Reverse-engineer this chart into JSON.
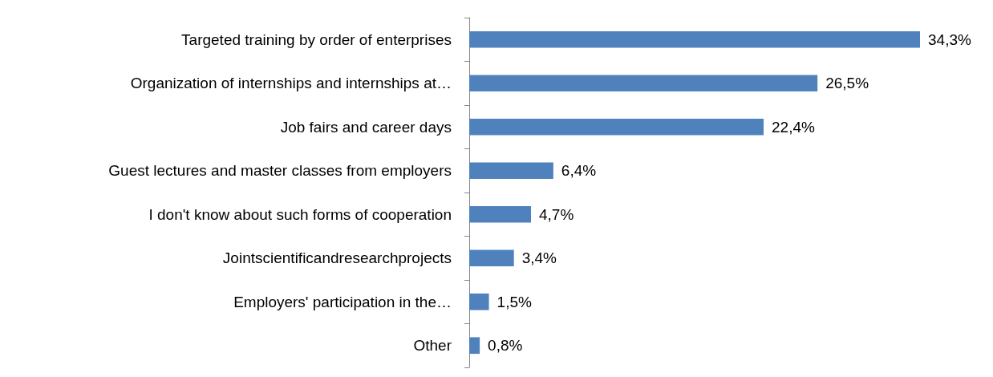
{
  "chart_data": {
    "type": "bar",
    "orientation": "horizontal",
    "categories": [
      "Targeted training by order of enterprises",
      "Organization of internships and internships at…",
      "Job fairs and career days",
      "Guest lectures and master classes from employers",
      "I don't know about such forms of cooperation",
      "Jointscientificandresearchprojects",
      "Employers' participation in the…",
      "Other"
    ],
    "values": [
      34.3,
      26.5,
      22.4,
      6.4,
      4.7,
      3.4,
      1.5,
      0.8
    ],
    "value_labels": [
      "34,3%",
      "26,5%",
      "22,4%",
      "6,4%",
      "4,7%",
      "3,4%",
      "1,5%",
      "0,8%"
    ],
    "color": "#4f81bd",
    "data_labels": true
  }
}
